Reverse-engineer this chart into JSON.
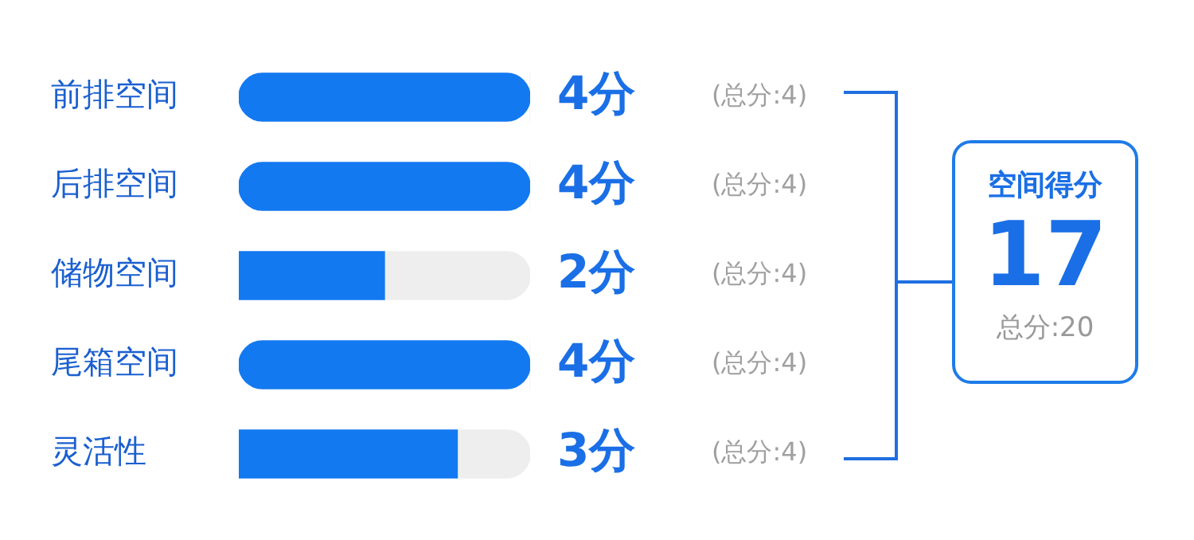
{
  "chart_data": {
    "type": "bar",
    "orientation": "horizontal",
    "stacked": true,
    "categories": [
      "前排空间",
      "后排空间",
      "储物空间",
      "尾箱空间",
      "灵活性"
    ],
    "series": [
      {
        "color": "#1379f0",
        "values": [
          4,
          4,
          2,
          4,
          3
        ],
        "value_labels": [
          "4分",
          "4分",
          "2分",
          "4分",
          "3分"
        ]
      },
      {
        "color": "#eeeeee",
        "values": [
          0,
          0,
          2,
          0,
          1
        ]
      }
    ],
    "annotations": [
      "(总分:4)",
      "(总分:4)",
      "(总分:4)",
      "(总分:4)",
      "(总分:4)",
      "空间得分",
      "17",
      "总分:20"
    ],
    "grid": false,
    "legend": false
  }
}
